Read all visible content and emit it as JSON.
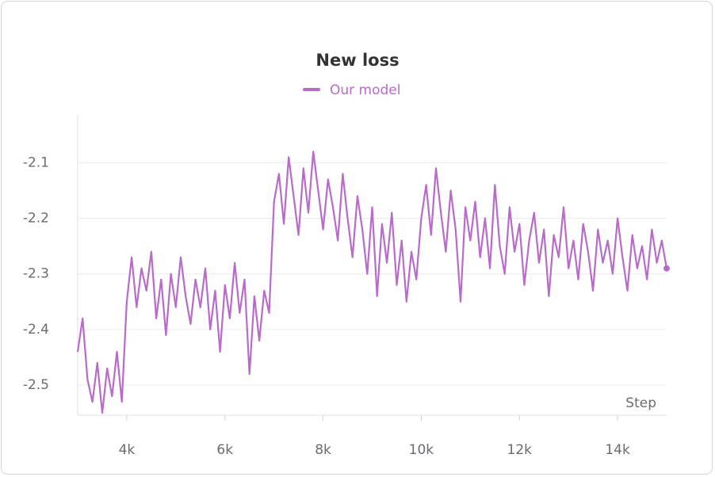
{
  "chart_data": {
    "type": "line",
    "title": "New loss",
    "xlabel": "Step",
    "series": [
      {
        "name": "Our model",
        "color": "#b86bc9",
        "x": [
          3000,
          3100,
          3200,
          3300,
          3400,
          3500,
          3600,
          3700,
          3800,
          3900,
          4000,
          4100,
          4200,
          4300,
          4400,
          4500,
          4600,
          4700,
          4800,
          4900,
          5000,
          5100,
          5200,
          5300,
          5400,
          5500,
          5600,
          5700,
          5800,
          5900,
          6000,
          6100,
          6200,
          6300,
          6400,
          6500,
          6600,
          6700,
          6800,
          6900,
          7000,
          7100,
          7200,
          7300,
          7400,
          7500,
          7600,
          7700,
          7800,
          7900,
          8000,
          8100,
          8200,
          8300,
          8400,
          8500,
          8600,
          8700,
          8800,
          8900,
          9000,
          9100,
          9200,
          9300,
          9400,
          9500,
          9600,
          9700,
          9800,
          9900,
          10000,
          10100,
          10200,
          10300,
          10400,
          10500,
          10600,
          10700,
          10800,
          10900,
          11000,
          11100,
          11200,
          11300,
          11400,
          11500,
          11600,
          11700,
          11800,
          11900,
          12000,
          12100,
          12200,
          12300,
          12400,
          12500,
          12600,
          12700,
          12800,
          12900,
          13000,
          13100,
          13200,
          13300,
          13400,
          13500,
          13600,
          13700,
          13800,
          13900,
          14000,
          14100,
          14200,
          14300,
          14400,
          14500,
          14600,
          14700,
          14800,
          14900,
          15000
        ],
        "values": [
          -2.44,
          -2.38,
          -2.49,
          -2.53,
          -2.46,
          -2.55,
          -2.47,
          -2.52,
          -2.44,
          -2.53,
          -2.35,
          -2.27,
          -2.36,
          -2.29,
          -2.33,
          -2.26,
          -2.38,
          -2.31,
          -2.41,
          -2.3,
          -2.36,
          -2.27,
          -2.34,
          -2.39,
          -2.31,
          -2.36,
          -2.29,
          -2.4,
          -2.33,
          -2.44,
          -2.32,
          -2.38,
          -2.28,
          -2.37,
          -2.31,
          -2.48,
          -2.34,
          -2.42,
          -2.33,
          -2.37,
          -2.17,
          -2.12,
          -2.21,
          -2.09,
          -2.16,
          -2.23,
          -2.11,
          -2.19,
          -2.08,
          -2.15,
          -2.22,
          -2.13,
          -2.18,
          -2.24,
          -2.12,
          -2.2,
          -2.27,
          -2.16,
          -2.22,
          -2.3,
          -2.18,
          -2.34,
          -2.21,
          -2.28,
          -2.19,
          -2.32,
          -2.24,
          -2.35,
          -2.26,
          -2.31,
          -2.2,
          -2.14,
          -2.23,
          -2.11,
          -2.19,
          -2.26,
          -2.15,
          -2.22,
          -2.35,
          -2.18,
          -2.24,
          -2.17,
          -2.27,
          -2.2,
          -2.29,
          -2.14,
          -2.25,
          -2.3,
          -2.18,
          -2.26,
          -2.21,
          -2.32,
          -2.24,
          -2.19,
          -2.28,
          -2.22,
          -2.34,
          -2.23,
          -2.27,
          -2.18,
          -2.29,
          -2.24,
          -2.31,
          -2.21,
          -2.26,
          -2.33,
          -2.22,
          -2.28,
          -2.24,
          -2.3,
          -2.2,
          -2.27,
          -2.33,
          -2.23,
          -2.29,
          -2.25,
          -2.31,
          -2.22,
          -2.28,
          -2.24,
          -2.29
        ]
      }
    ],
    "xlim": [
      3000,
      15000
    ],
    "ylim": [
      -2.554,
      -2.014
    ],
    "xticks": [
      {
        "value": 4000,
        "label": "4k"
      },
      {
        "value": 6000,
        "label": "6k"
      },
      {
        "value": 8000,
        "label": "8k"
      },
      {
        "value": 10000,
        "label": "10k"
      },
      {
        "value": 12000,
        "label": "12k"
      },
      {
        "value": 14000,
        "label": "14k"
      }
    ],
    "yticks": [
      -2.5,
      -2.4,
      -2.3,
      -2.2,
      -2.1
    ],
    "grid": true
  }
}
